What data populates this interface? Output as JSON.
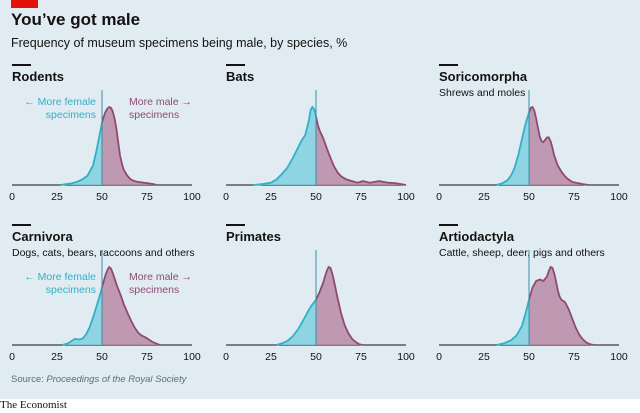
{
  "header": {
    "title": "You’ve got male",
    "subtitle": "Frequency of museum specimens being male, by species, %"
  },
  "colors": {
    "female": "#2fb1c8",
    "male": "#8e4a76",
    "female_fill": "#7fd0e0",
    "male_fill": "#b98aa7",
    "accent": "#e3120b"
  },
  "source": {
    "prefix": "Source: ",
    "name": "Proceedings of the Royal Society"
  },
  "brand": "The Economist",
  "annotations": {
    "female": [
      "← More female",
      "specimens"
    ],
    "male": [
      "More male →",
      "specimens"
    ]
  },
  "chart_data": [
    {
      "type": "area",
      "title": "Rodents",
      "subtitle": "",
      "xlim": [
        0,
        100
      ],
      "ticks": [
        0,
        25,
        50,
        75,
        100
      ],
      "reference_line": 50,
      "x": [
        27,
        30,
        33,
        36,
        39,
        42,
        45,
        47,
        49,
        50,
        51,
        52,
        53,
        54,
        55,
        56,
        57,
        58,
        59,
        60,
        61,
        62,
        64,
        66,
        68,
        70,
        73,
        76,
        79,
        80
      ],
      "density": [
        0,
        0.01,
        0.02,
        0.04,
        0.07,
        0.12,
        0.25,
        0.45,
        0.68,
        0.8,
        0.88,
        0.94,
        0.98,
        1.0,
        0.99,
        0.94,
        0.85,
        0.72,
        0.55,
        0.38,
        0.28,
        0.2,
        0.12,
        0.07,
        0.05,
        0.04,
        0.03,
        0.02,
        0.01,
        0
      ]
    },
    {
      "type": "area",
      "title": "Bats",
      "subtitle": "",
      "xlim": [
        0,
        100
      ],
      "ticks": [
        0,
        25,
        50,
        75,
        100
      ],
      "reference_line": 50,
      "x": [
        15,
        20,
        25,
        28,
        31,
        34,
        37,
        40,
        42,
        44,
        46,
        47,
        48,
        49,
        50,
        51,
        52,
        54,
        56,
        58,
        60,
        62,
        64,
        67,
        70,
        73,
        76,
        80,
        85,
        90,
        95,
        100
      ],
      "density": [
        0,
        0.01,
        0.03,
        0.07,
        0.14,
        0.22,
        0.34,
        0.48,
        0.57,
        0.64,
        0.82,
        0.96,
        1.0,
        0.97,
        0.88,
        0.77,
        0.7,
        0.6,
        0.47,
        0.35,
        0.24,
        0.16,
        0.11,
        0.07,
        0.05,
        0.03,
        0.05,
        0.03,
        0.05,
        0.03,
        0.02,
        0
      ]
    },
    {
      "type": "area",
      "title": "Soricomorpha",
      "subtitle": "Shrews and moles",
      "xlim": [
        0,
        100
      ],
      "ticks": [
        0,
        25,
        50,
        75,
        100
      ],
      "reference_line": 50,
      "x": [
        32,
        35,
        38,
        40,
        42,
        44,
        46,
        48,
        50,
        51,
        52,
        53,
        54,
        55,
        56,
        57,
        58,
        59,
        60,
        61,
        62,
        63,
        64,
        66,
        68,
        70,
        72,
        74,
        76,
        78,
        80,
        83
      ],
      "density": [
        0,
        0.02,
        0.06,
        0.12,
        0.22,
        0.38,
        0.58,
        0.78,
        0.93,
        0.99,
        1.0,
        0.95,
        0.85,
        0.73,
        0.62,
        0.56,
        0.55,
        0.58,
        0.61,
        0.61,
        0.56,
        0.48,
        0.38,
        0.25,
        0.17,
        0.11,
        0.07,
        0.04,
        0.03,
        0.02,
        0.01,
        0
      ]
    },
    {
      "type": "area",
      "title": "Carnivora",
      "subtitle": "Dogs, cats, bears, raccoons and others",
      "xlim": [
        0,
        100
      ],
      "ticks": [
        0,
        25,
        50,
        75,
        100
      ],
      "reference_line": 50,
      "x": [
        28,
        31,
        33,
        35,
        37,
        39,
        41,
        43,
        45,
        47,
        49,
        50,
        51,
        52,
        53,
        54,
        55,
        56,
        57,
        58,
        59,
        60,
        61,
        62,
        64,
        66,
        68,
        70,
        72,
        74,
        76,
        78,
        80,
        82
      ],
      "density": [
        0,
        0.02,
        0.05,
        0.08,
        0.07,
        0.08,
        0.13,
        0.22,
        0.35,
        0.5,
        0.65,
        0.74,
        0.82,
        0.9,
        0.96,
        1.0,
        0.98,
        0.92,
        0.85,
        0.78,
        0.72,
        0.66,
        0.6,
        0.53,
        0.42,
        0.32,
        0.23,
        0.16,
        0.12,
        0.1,
        0.07,
        0.04,
        0.02,
        0
      ]
    },
    {
      "type": "area",
      "title": "Primates",
      "subtitle": "",
      "xlim": [
        0,
        100
      ],
      "ticks": [
        0,
        25,
        50,
        75,
        100
      ],
      "reference_line": 50,
      "x": [
        28,
        31,
        34,
        37,
        40,
        43,
        46,
        48,
        50,
        52,
        54,
        55,
        56,
        57,
        58,
        59,
        60,
        62,
        64,
        66,
        68,
        70,
        72,
        74,
        76
      ],
      "density": [
        0,
        0.02,
        0.05,
        0.11,
        0.2,
        0.32,
        0.45,
        0.52,
        0.58,
        0.68,
        0.8,
        0.88,
        0.95,
        1.0,
        0.99,
        0.92,
        0.82,
        0.6,
        0.4,
        0.25,
        0.15,
        0.08,
        0.04,
        0.01,
        0
      ]
    },
    {
      "type": "area",
      "title": "Artiodactyla",
      "subtitle": "Cattle, sheep, deer, pigs and others",
      "xlim": [
        0,
        100
      ],
      "ticks": [
        0,
        25,
        50,
        75,
        100
      ],
      "reference_line": 50,
      "x": [
        32,
        36,
        40,
        43,
        46,
        48,
        50,
        52,
        54,
        56,
        58,
        60,
        61,
        62,
        63,
        64,
        65,
        66,
        67,
        68,
        70,
        72,
        74,
        76,
        78,
        80,
        82,
        84,
        86
      ],
      "density": [
        0,
        0.02,
        0.06,
        0.12,
        0.24,
        0.4,
        0.58,
        0.74,
        0.82,
        0.84,
        0.82,
        0.88,
        0.95,
        1.0,
        0.99,
        0.92,
        0.82,
        0.7,
        0.62,
        0.58,
        0.55,
        0.46,
        0.34,
        0.22,
        0.13,
        0.07,
        0.03,
        0.01,
        0
      ]
    }
  ]
}
